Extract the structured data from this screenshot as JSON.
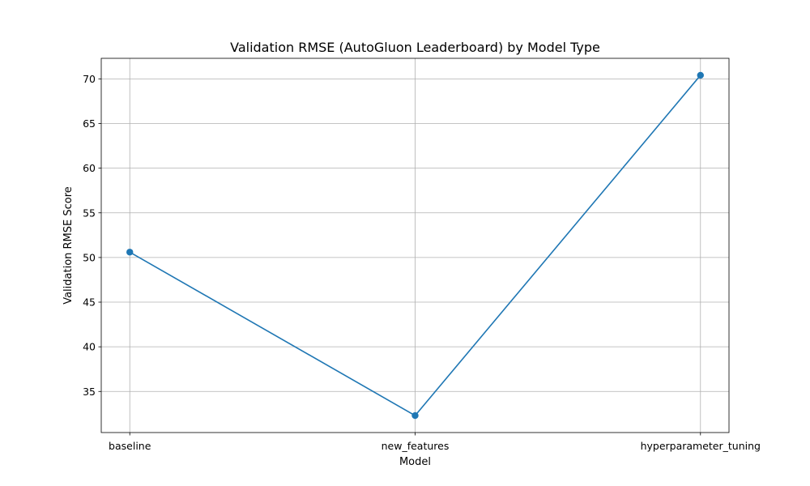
{
  "chart_data": {
    "type": "line",
    "title": "Validation RMSE (AutoGluon Leaderboard) by Model Type",
    "xlabel": "Model",
    "ylabel": "Validation RMSE Score",
    "categories": [
      "baseline",
      "new_features",
      "hyperparameter_tuning"
    ],
    "series": [
      {
        "values": [
          50.6,
          32.3,
          70.4
        ],
        "color": "#1f77b4",
        "marker": "circle"
      }
    ],
    "yticks": [
      35,
      40,
      45,
      50,
      55,
      60,
      65,
      70
    ],
    "ylim": [
      30.4,
      72.3
    ],
    "grid": true,
    "legend": "none"
  }
}
